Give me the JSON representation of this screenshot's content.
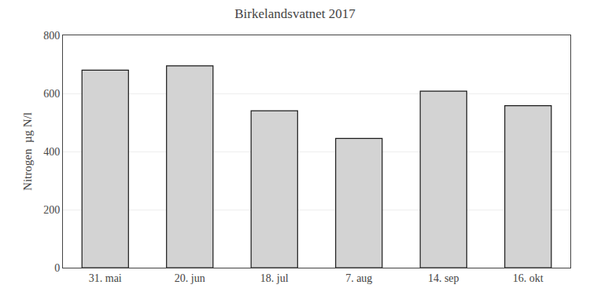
{
  "chart_data": {
    "type": "bar",
    "title": "Birkelandsvatnet 2017",
    "categories": [
      "31. mai",
      "20. jun",
      "18. jul",
      "7. aug",
      "14. sep",
      "16. okt"
    ],
    "values": [
      680,
      695,
      540,
      445,
      608,
      558
    ],
    "color": "#d3d3d3",
    "ylabel": "Nitrogen  µg N/l",
    "ylim": [
      0,
      800
    ],
    "yticks": [
      0,
      200,
      400,
      600,
      800
    ],
    "grid": true
  }
}
